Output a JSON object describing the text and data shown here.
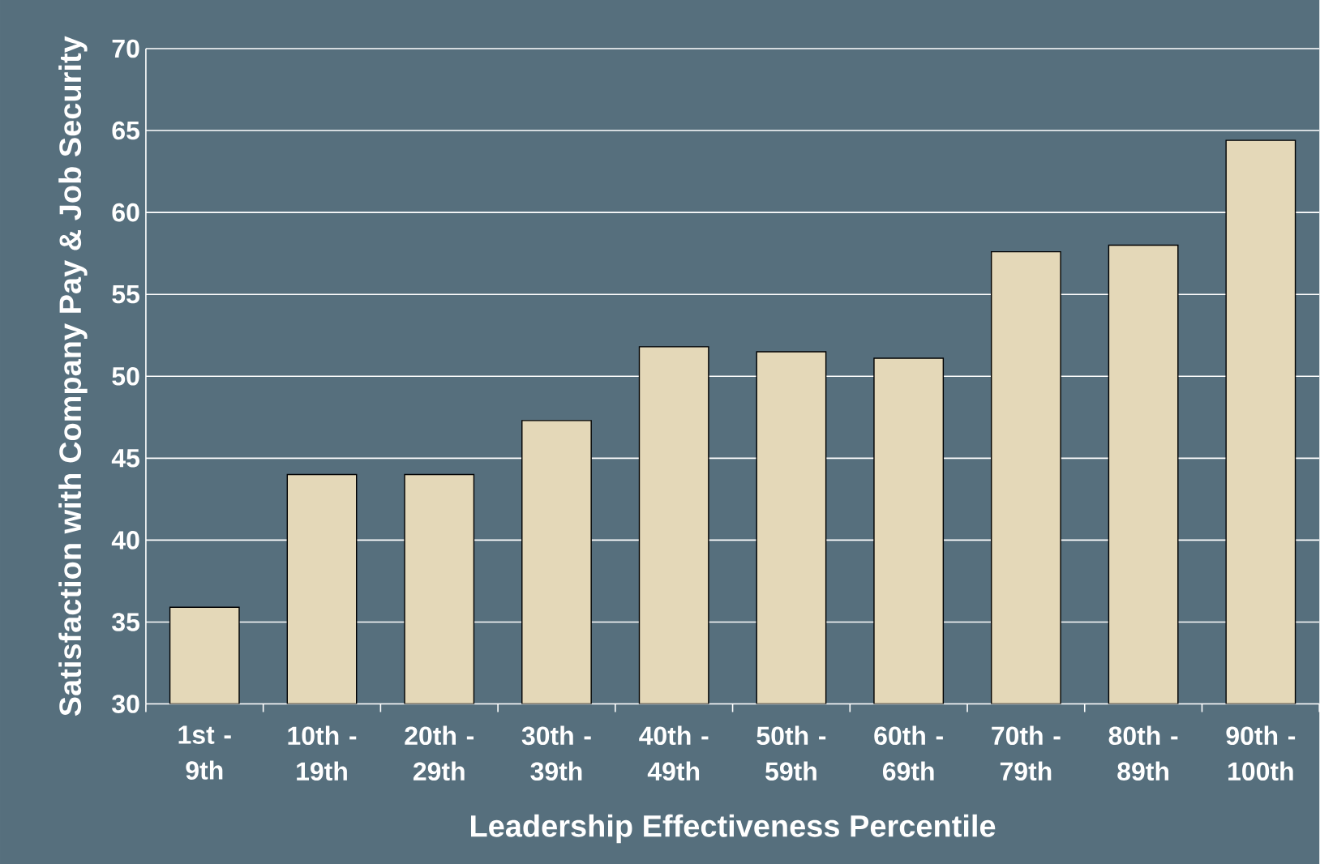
{
  "chart_data": {
    "type": "bar",
    "xlabel": "Leadership Effectiveness Percentile",
    "ylabel": "Satisfaction with Company Pay & Job Security",
    "categories": [
      "1st - 9th",
      "10th - 19th",
      "20th - 29th",
      "30th - 39th",
      "40th - 49th",
      "50th - 59th",
      "60th - 69th",
      "70th - 79th",
      "80th - 89th",
      "90th - 100th"
    ],
    "values": [
      35.9,
      44,
      44,
      47.3,
      51.8,
      51.5,
      51.1,
      57.6,
      58.0,
      64.4
    ],
    "color": "#e4d8b8",
    "ylim": [
      30,
      70
    ],
    "yticks": [
      30,
      35,
      40,
      45,
      50,
      55,
      60,
      65,
      70
    ],
    "grid": "y"
  }
}
